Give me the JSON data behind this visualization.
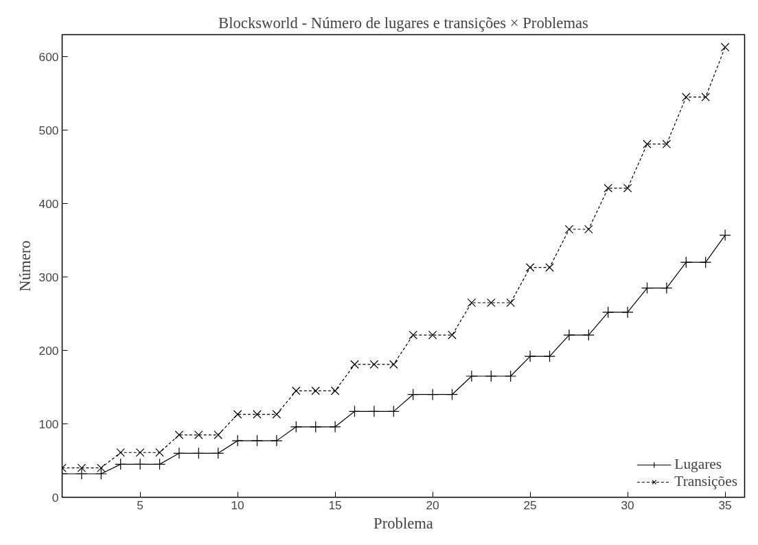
{
  "chart_data": {
    "type": "line",
    "title": "Blocksworld - Número de lugares e transições × Problemas",
    "xlabel": "Problema",
    "ylabel": "Número",
    "x": [
      1,
      2,
      3,
      4,
      5,
      6,
      7,
      8,
      9,
      10,
      11,
      12,
      13,
      14,
      15,
      16,
      17,
      18,
      19,
      20,
      21,
      22,
      23,
      24,
      25,
      26,
      27,
      28,
      29,
      30,
      31,
      32,
      33,
      34,
      35
    ],
    "series": [
      {
        "name": "Lugares",
        "color": "#000000",
        "marker": "cross",
        "line_style": "solid",
        "values": [
          32,
          32,
          32,
          45,
          45,
          45,
          60,
          60,
          60,
          77,
          77,
          77,
          96,
          96,
          96,
          117,
          117,
          117,
          140,
          140,
          140,
          165,
          165,
          165,
          192,
          192,
          221,
          221,
          252,
          252,
          285,
          285,
          320,
          320,
          357
        ]
      },
      {
        "name": "Transições",
        "color": "#000000",
        "marker": "x",
        "line_style": "dashed",
        "values": [
          40,
          40,
          40,
          61,
          61,
          61,
          85,
          85,
          85,
          113,
          113,
          113,
          145,
          145,
          145,
          181,
          181,
          181,
          221,
          221,
          221,
          265,
          265,
          265,
          313,
          313,
          365,
          365,
          421,
          421,
          481,
          481,
          545,
          545,
          613
        ]
      }
    ],
    "xlim": [
      1,
      36
    ],
    "ylim": [
      0,
      630
    ],
    "xticks": [
      5,
      10,
      15,
      20,
      25,
      30,
      35
    ],
    "yticks": [
      0,
      100,
      200,
      300,
      400,
      500,
      600
    ],
    "grid": false,
    "legend": "bottom right"
  }
}
